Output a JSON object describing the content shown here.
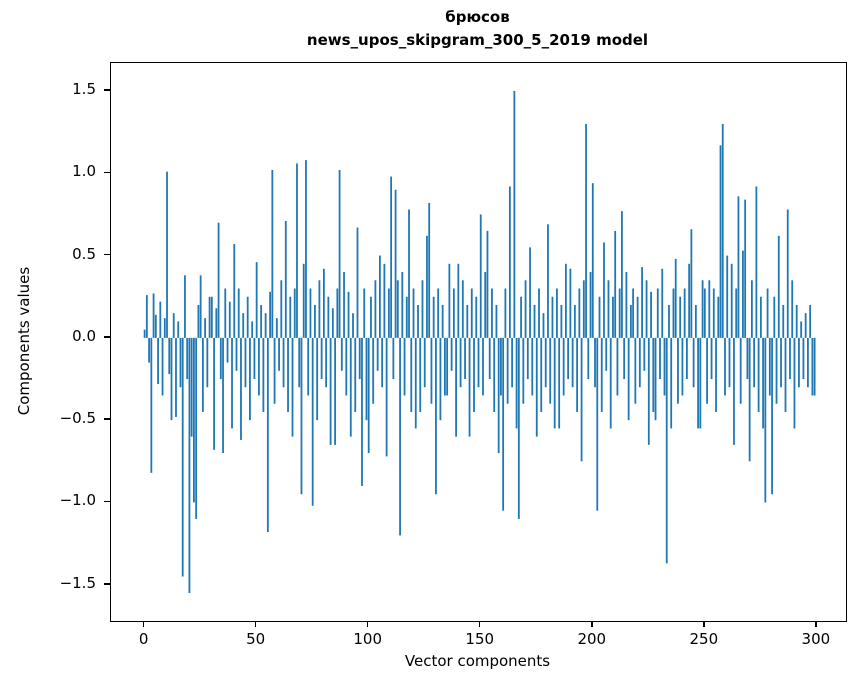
{
  "chart_data": {
    "type": "bar",
    "title": "брюсов",
    "subtitle": "news_upos_skipgram_300_5_2019 model",
    "xlabel": "Vector components",
    "ylabel": "Components values",
    "bar_color": "#1f77b4",
    "axis_color": "#000000",
    "xlim": [
      -15,
      313
    ],
    "ylim": [
      -1.72,
      1.67
    ],
    "xticks": [
      0,
      50,
      100,
      150,
      200,
      250,
      300
    ],
    "xtick_labels": [
      "0",
      "50",
      "100",
      "150",
      "200",
      "250",
      "300"
    ],
    "yticks": [
      -1.5,
      -1.0,
      -0.5,
      0.0,
      0.5,
      1.0,
      1.5
    ],
    "ytick_labels": [
      "−1.5",
      "−1.0",
      "−0.5",
      "0.0",
      "0.5",
      "1.0",
      "1.5"
    ],
    "n_components": 300,
    "legend": null,
    "grid": false,
    "values": [
      0.05,
      0.26,
      -0.15,
      -0.82,
      0.27,
      0.14,
      -0.28,
      0.22,
      -0.35,
      0.12,
      1.01,
      -0.22,
      -0.5,
      0.15,
      -0.48,
      0.1,
      -0.3,
      -1.45,
      0.38,
      -0.25,
      -1.55,
      -0.6,
      -1.0,
      -1.1,
      0.2,
      0.38,
      -0.45,
      0.12,
      -0.3,
      0.25,
      0.25,
      -0.68,
      0.18,
      0.7,
      -0.25,
      -0.7,
      0.3,
      -0.15,
      0.22,
      -0.55,
      0.57,
      -0.2,
      0.3,
      -0.62,
      0.15,
      -0.3,
      0.25,
      -0.5,
      0.1,
      -0.25,
      0.46,
      -0.35,
      0.2,
      -0.45,
      0.15,
      -1.18,
      0.28,
      1.02,
      -0.4,
      0.12,
      -0.2,
      0.35,
      -0.3,
      0.71,
      -0.45,
      0.25,
      -0.6,
      0.3,
      1.06,
      -0.3,
      -0.95,
      0.45,
      1.08,
      -0.35,
      0.3,
      -1.02,
      0.2,
      -0.5,
      0.35,
      -0.25,
      0.42,
      -0.3,
      0.25,
      -0.65,
      0.18,
      -0.65,
      0.3,
      1.02,
      -0.2,
      0.4,
      -0.35,
      0.28,
      -0.6,
      0.15,
      -0.45,
      0.67,
      -0.25,
      -0.9,
      0.3,
      -0.5,
      -0.7,
      0.25,
      -0.4,
      0.35,
      -0.2,
      0.5,
      -0.3,
      0.45,
      -0.72,
      0.3,
      0.98,
      -0.25,
      0.9,
      0.35,
      -1.2,
      0.4,
      -0.35,
      0.25,
      0.78,
      -0.45,
      0.3,
      -0.55,
      0.2,
      -0.45,
      0.35,
      -0.3,
      0.62,
      0.82,
      -0.4,
      0.25,
      -0.95,
      0.3,
      -0.5,
      0.2,
      -0.35,
      -0.35,
      0.45,
      -0.2,
      0.3,
      -0.6,
      0.45,
      -0.3,
      0.35,
      -0.25,
      0.2,
      -0.6,
      0.3,
      -0.45,
      0.25,
      -0.3,
      0.75,
      -0.35,
      0.4,
      0.65,
      -0.25,
      0.3,
      -0.45,
      0.2,
      -0.7,
      -0.35,
      -1.05,
      0.3,
      -0.4,
      0.92,
      -0.3,
      1.5,
      -0.55,
      -1.1,
      0.25,
      -0.4,
      0.35,
      -0.25,
      0.55,
      -0.35,
      0.2,
      -0.6,
      0.3,
      -0.45,
      0.15,
      -0.3,
      0.69,
      -0.4,
      0.25,
      -0.55,
      0.3,
      -0.55,
      0.2,
      -0.35,
      0.45,
      -0.25,
      0.42,
      -0.3,
      0.2,
      -0.45,
      0.3,
      -0.75,
      0.35,
      1.3,
      -0.25,
      0.4,
      0.94,
      -0.3,
      -1.05,
      0.25,
      -0.45,
      0.58,
      -0.2,
      0.35,
      -0.55,
      0.25,
      0.65,
      -0.35,
      0.3,
      0.77,
      -0.25,
      0.4,
      -0.5,
      0.2,
      0.3,
      -0.4,
      0.25,
      -0.3,
      0.43,
      -0.2,
      0.35,
      -0.65,
      0.28,
      -0.45,
      -0.5,
      0.3,
      -0.25,
      0.42,
      -0.35,
      -1.37,
      0.2,
      -0.55,
      0.3,
      0.48,
      -0.4,
      0.25,
      -0.35,
      0.3,
      -0.25,
      0.45,
      0.66,
      -0.3,
      0.2,
      -0.55,
      -0.55,
      0.35,
      0.3,
      -0.4,
      0.35,
      -0.25,
      0.3,
      -0.45,
      0.25,
      1.17,
      1.3,
      -0.35,
      0.5,
      -0.3,
      0.45,
      -0.65,
      0.3,
      0.86,
      -0.4,
      0.53,
      0.84,
      -0.25,
      -0.75,
      0.35,
      -0.3,
      0.92,
      -0.45,
      0.25,
      -0.55,
      -1.0,
      0.3,
      -0.35,
      -0.95,
      0.25,
      -0.4,
      0.62,
      -0.3,
      0.2,
      -0.45,
      0.78,
      -0.25,
      0.35,
      -0.55,
      0.2,
      -0.3,
      0.1,
      -0.25,
      0.15,
      -0.3,
      0.2,
      -0.35,
      -0.35
    ]
  }
}
